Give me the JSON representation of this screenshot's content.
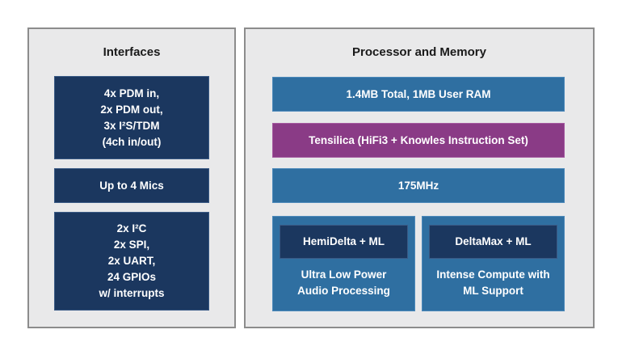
{
  "interfaces": {
    "title": "Interfaces",
    "blocks": [
      "4x PDM in,\n2x PDM out,\n3x I²S/TDM\n(4ch in/out)",
      "Up to 4 Mics",
      "2x I²C\n2x SPI,\n2x UART,\n24 GPIOs\nw/ interrupts"
    ]
  },
  "processor": {
    "title": "Processor and Memory",
    "memory": "1.4MB Total, 1MB User RAM",
    "isa": "Tensilica (HiFi3 + Knowles Instruction Set)",
    "clock": "175MHz",
    "cores": [
      {
        "name": "HemiDelta + ML",
        "desc": "Ultra Low Power\nAudio Processing"
      },
      {
        "name": "DeltaMax + ML",
        "desc": "Intense Compute with\nML Support"
      }
    ]
  },
  "colors": {
    "navy": "#1b375f",
    "blue": "#2f6fa1",
    "purple": "#8a3b86",
    "panel": "#e9e9ea"
  }
}
